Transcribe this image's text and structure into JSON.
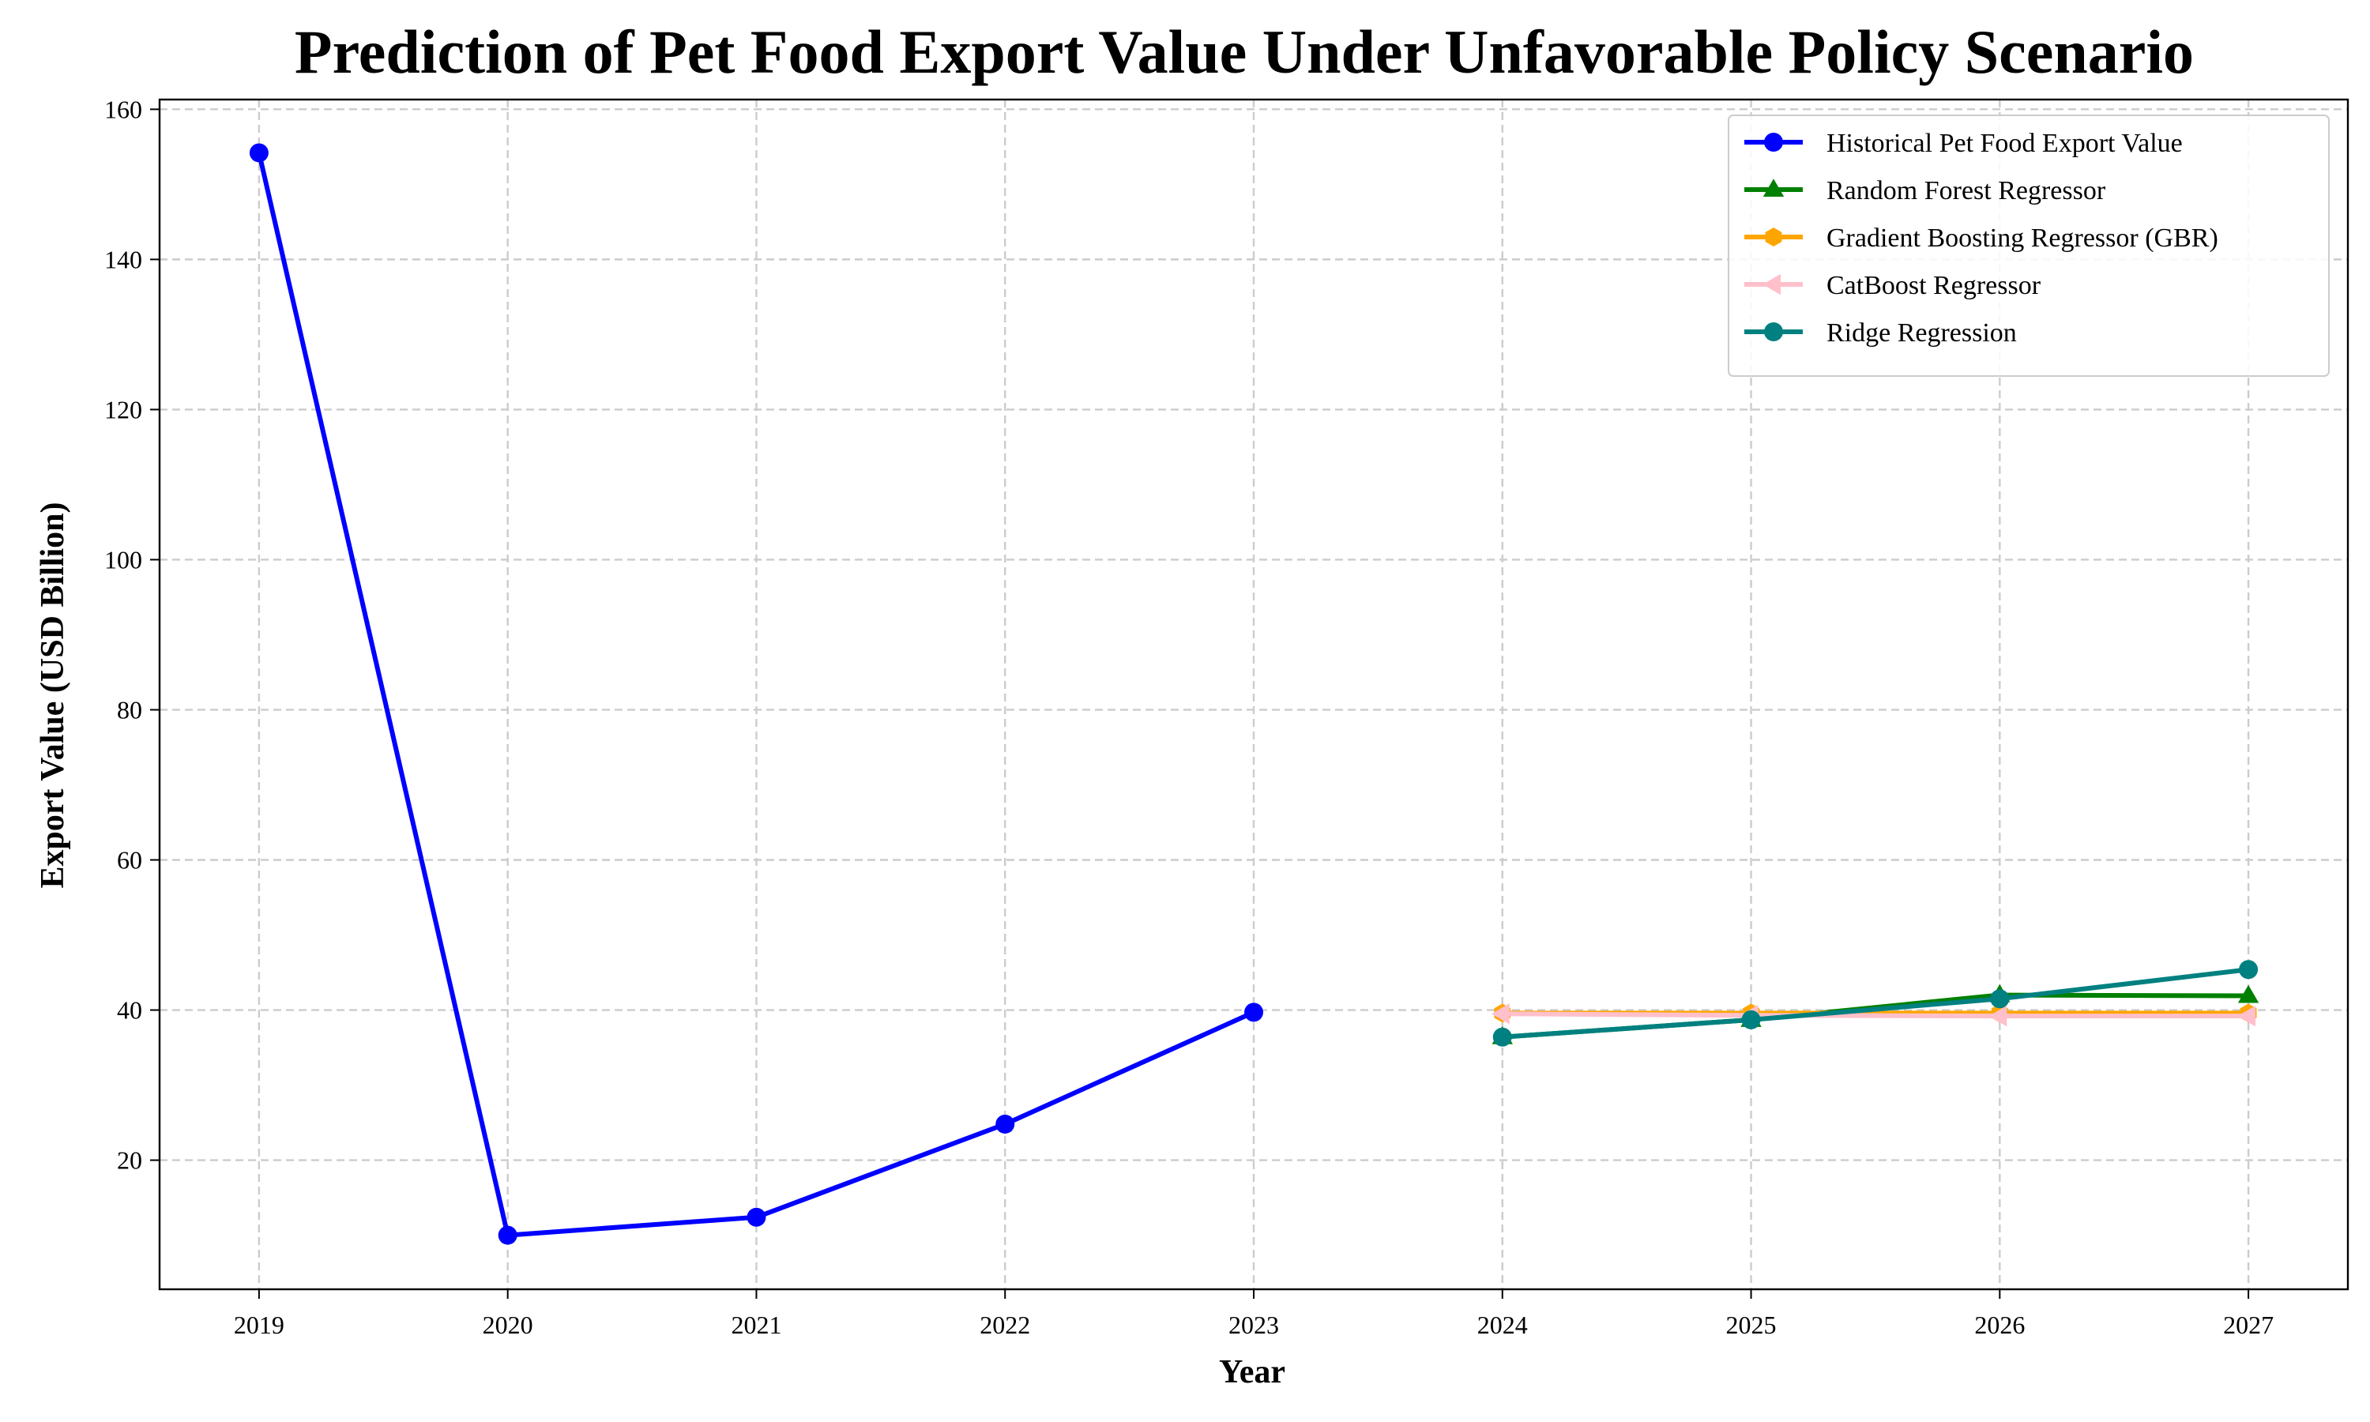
{
  "chart_data": {
    "type": "line",
    "title": "Prediction of Pet Food Export Value Under Unfavorable Policy Scenario",
    "xlabel": "Year",
    "ylabel": "Export Value (USD Billion)",
    "x_ticks": [
      "2019",
      "2020",
      "2021",
      "2022",
      "2023",
      "2024",
      "2025",
      "2026",
      "2027"
    ],
    "y_ticks": [
      "20",
      "40",
      "60",
      "80",
      "100",
      "120",
      "140",
      "160"
    ],
    "xlim": [
      2018.6,
      2027.4
    ],
    "ylim": [
      2.8,
      161.3
    ],
    "grid": true,
    "legend_position": "top-right",
    "series": [
      {
        "name": "Historical Pet Food Export Value",
        "color": "#0000ff",
        "marker": "circle",
        "x": [
          2019,
          2020,
          2021,
          2022,
          2023
        ],
        "values": [
          154.2,
          10.0,
          12.4,
          24.8,
          39.7
        ]
      },
      {
        "name": "Random Forest Regressor",
        "color": "#008000",
        "marker": "triangle-up",
        "x": [
          2024,
          2025,
          2026,
          2027
        ],
        "values": [
          36.4,
          38.7,
          42.0,
          41.9
        ]
      },
      {
        "name": "Gradient Boosting Regressor (GBR)",
        "color": "#ffa500",
        "marker": "hexagon",
        "x": [
          2024,
          2025,
          2026,
          2027
        ],
        "values": [
          39.6,
          39.6,
          39.6,
          39.6
        ]
      },
      {
        "name": "CatBoost Regressor",
        "color": "#ffc0cb",
        "marker": "triangle-left",
        "x": [
          2024,
          2025,
          2026,
          2027
        ],
        "values": [
          39.5,
          39.3,
          39.2,
          39.2
        ]
      },
      {
        "name": "Ridge Regression",
        "color": "#008080",
        "marker": "circle",
        "x": [
          2024,
          2025,
          2026,
          2027
        ],
        "values": [
          36.4,
          38.7,
          41.5,
          45.4
        ]
      }
    ]
  }
}
